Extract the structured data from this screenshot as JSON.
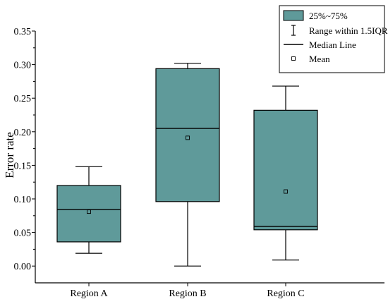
{
  "chart_data": {
    "type": "box",
    "title": "",
    "xlabel": "",
    "ylabel": "Error rate",
    "ylim": [
      -0.025,
      0.35
    ],
    "yticks": [
      "0.00",
      "0.05",
      "0.10",
      "0.15",
      "0.20",
      "0.25",
      "0.30",
      "0.35"
    ],
    "grid": false,
    "legend_position": "top-right",
    "box_color": "#5f9a9a",
    "categories": [
      "Region A",
      "Region B",
      "Region C"
    ],
    "boxes": [
      {
        "whisker_low": 0.019,
        "q1": 0.036,
        "median": 0.084,
        "q3": 0.12,
        "whisker_high": 0.148,
        "mean": 0.081
      },
      {
        "whisker_low": 0.0,
        "q1": 0.096,
        "median": 0.205,
        "q3": 0.294,
        "whisker_high": 0.302,
        "mean": 0.191
      },
      {
        "whisker_low": 0.009,
        "q1": 0.054,
        "median": 0.059,
        "q3": 0.232,
        "whisker_high": 0.268,
        "mean": 0.111
      }
    ],
    "legend": [
      {
        "key": "box",
        "label": "25%~75%"
      },
      {
        "key": "whisker",
        "label": "Range within 1.5IQR"
      },
      {
        "key": "median",
        "label": "Median Line"
      },
      {
        "key": "mean",
        "label": "Mean"
      }
    ]
  }
}
